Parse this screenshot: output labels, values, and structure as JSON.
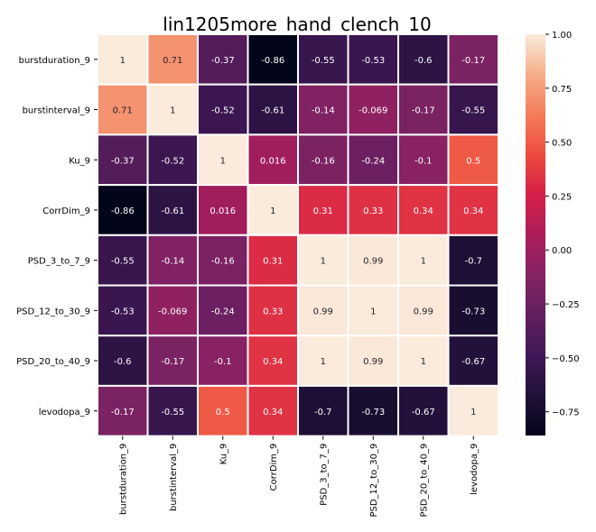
{
  "chart_data": {
    "type": "heatmap",
    "title": "lin1205more_hand_clench_10",
    "xlabel": "",
    "ylabel": "",
    "rows": [
      "burstduration_9",
      "burstinterval_9",
      "Ku_9",
      "CorrDim_9",
      "PSD_3_to_7_9",
      "PSD_12_to_30_9",
      "PSD_20_to_40_9",
      "levodopa_9"
    ],
    "columns": [
      "burstduration_9",
      "burstinterval_9",
      "Ku_9",
      "CorrDim_9",
      "PSD_3_to_7_9",
      "PSD_12_to_30_9",
      "PSD_20_to_40_9",
      "levodopa_9"
    ],
    "values": [
      [
        1,
        0.71,
        -0.37,
        -0.86,
        -0.55,
        -0.53,
        -0.6,
        -0.17
      ],
      [
        0.71,
        1,
        -0.52,
        -0.61,
        -0.14,
        -0.069,
        -0.17,
        -0.55
      ],
      [
        -0.37,
        -0.52,
        1,
        0.016,
        -0.16,
        -0.24,
        -0.1,
        0.5
      ],
      [
        -0.86,
        -0.61,
        0.016,
        1,
        0.31,
        0.33,
        0.34,
        0.34
      ],
      [
        -0.55,
        -0.14,
        -0.16,
        0.31,
        1,
        0.99,
        1,
        -0.7
      ],
      [
        -0.53,
        -0.069,
        -0.24,
        0.33,
        0.99,
        1,
        0.99,
        -0.73
      ],
      [
        -0.6,
        -0.17,
        -0.1,
        0.34,
        1,
        0.99,
        1,
        -0.67
      ],
      [
        -0.17,
        -0.55,
        0.5,
        0.34,
        -0.7,
        -0.73,
        -0.67,
        1
      ]
    ],
    "value_labels": [
      [
        "1",
        "0.71",
        "-0.37",
        "-0.86",
        "-0.55",
        "-0.53",
        "-0.6",
        "-0.17"
      ],
      [
        "0.71",
        "1",
        "-0.52",
        "-0.61",
        "-0.14",
        "-0.069",
        "-0.17",
        "-0.55"
      ],
      [
        "-0.37",
        "-0.52",
        "1",
        "0.016",
        "-0.16",
        "-0.24",
        "-0.1",
        "0.5"
      ],
      [
        "-0.86",
        "-0.61",
        "0.016",
        "1",
        "0.31",
        "0.33",
        "0.34",
        "0.34"
      ],
      [
        "-0.55",
        "-0.14",
        "-0.16",
        "0.31",
        "1",
        "0.99",
        "1",
        "-0.7"
      ],
      [
        "-0.53",
        "-0.069",
        "-0.24",
        "0.33",
        "0.99",
        "1",
        "0.99",
        "-0.73"
      ],
      [
        "-0.6",
        "-0.17",
        "-0.1",
        "0.34",
        "1",
        "0.99",
        "1",
        "-0.67"
      ],
      [
        "-0.17",
        "-0.55",
        "0.5",
        "0.34",
        "-0.7",
        "-0.73",
        "-0.67",
        "1"
      ]
    ],
    "colormap": "rocket",
    "vmin": -0.86,
    "vmax": 1.0,
    "colorbar_ticks": [
      1.0,
      0.75,
      0.5,
      0.25,
      0.0,
      -0.25,
      -0.5,
      -0.75
    ],
    "colorbar_tick_labels": [
      "1.00",
      "0.75",
      "0.50",
      "0.25",
      "0.00",
      "−0.25",
      "−0.50",
      "−0.75"
    ],
    "colorbar_position": "right",
    "cell_border_color": "#ffffff",
    "grid": false,
    "legend": "none"
  }
}
